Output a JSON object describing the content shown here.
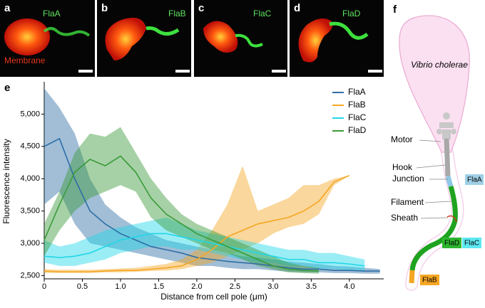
{
  "panels": [
    {
      "letter": "a",
      "label": "FlaA"
    },
    {
      "letter": "b",
      "label": "FlaB"
    },
    {
      "letter": "c",
      "label": "FlaC"
    },
    {
      "letter": "d",
      "label": "FlaD"
    }
  ],
  "membrane_label": "Membrane",
  "chart_data": {
    "type": "line",
    "panel_letter": "e",
    "xlabel": "Distance from cell pole (μm)",
    "ylabel": "Fluorescence intensity",
    "x": [
      0,
      0.2,
      0.4,
      0.6,
      0.8,
      1.0,
      1.2,
      1.4,
      1.6,
      1.8,
      2.0,
      2.2,
      2.4,
      2.6,
      2.8,
      3.0,
      3.2,
      3.4,
      3.6,
      3.8,
      4.0,
      4.2,
      4.4
    ],
    "xlim": [
      0,
      4.45
    ],
    "ylim": [
      2450,
      5500
    ],
    "xticks": [
      {
        "value": 0,
        "label": "0"
      },
      {
        "value": 0.5,
        "label": "0.5"
      },
      {
        "value": 1,
        "label": "1.0"
      },
      {
        "value": 1.5,
        "label": "1.5"
      },
      {
        "value": 2,
        "label": "2.0"
      },
      {
        "value": 2.5,
        "label": "2.5"
      },
      {
        "value": 3,
        "label": "3.0"
      },
      {
        "value": 3.5,
        "label": "3.5"
      },
      {
        "value": 4,
        "label": "4.0"
      }
    ],
    "yticks": [
      {
        "value": 2500,
        "label": "2,500"
      },
      {
        "value": 3000,
        "label": "3,000"
      },
      {
        "value": 3500,
        "label": "3,500"
      },
      {
        "value": 4000,
        "label": "4,000"
      },
      {
        "value": 4500,
        "label": "4,500"
      },
      {
        "value": 5000,
        "label": "5,000"
      }
    ],
    "series": [
      {
        "name": "FlaA",
        "color": "#2f6ea5",
        "values": [
          4500,
          4620,
          4000,
          3500,
          3300,
          3150,
          3050,
          2950,
          2900,
          2850,
          2780,
          2750,
          2720,
          2700,
          2680,
          2650,
          2620,
          2600,
          2600,
          2580,
          2580,
          2570,
          2570
        ],
        "upper": [
          5400,
          5100,
          4700,
          4000,
          3600,
          3400,
          3250,
          3150,
          3050,
          3000,
          2950,
          2900,
          2850,
          2800,
          2780,
          2750,
          2720,
          2700,
          2680,
          2650,
          2640,
          2620,
          2600
        ],
        "lower": [
          3600,
          3800,
          3300,
          3000,
          2950,
          2900,
          2850,
          2800,
          2750,
          2700,
          2650,
          2650,
          2620,
          2600,
          2600,
          2580,
          2560,
          2550,
          2550,
          2540,
          2540,
          2530,
          2530
        ]
      },
      {
        "name": "FlaB",
        "color": "#f5a623",
        "values": [
          2570,
          2560,
          2560,
          2560,
          2570,
          2580,
          2580,
          2600,
          2620,
          2650,
          2750,
          2900,
          3100,
          3200,
          3300,
          3350,
          3400,
          3500,
          3650,
          3950,
          4050,
          null,
          null
        ],
        "upper": [
          2600,
          2590,
          2590,
          2590,
          2600,
          2610,
          2620,
          2650,
          2680,
          2750,
          2900,
          3200,
          3600,
          4200,
          3500,
          3600,
          3700,
          3900,
          3900,
          4000,
          4050,
          null,
          null
        ],
        "lower": [
          2540,
          2540,
          2540,
          2540,
          2550,
          2550,
          2560,
          2570,
          2580,
          2600,
          2650,
          2700,
          2800,
          2900,
          3000,
          3150,
          3250,
          3300,
          3450,
          3900,
          4050,
          null,
          null
        ]
      },
      {
        "name": "FlaC",
        "color": "#22d6e8",
        "values": [
          2800,
          2780,
          2800,
          2850,
          2950,
          3050,
          3100,
          3150,
          3150,
          3100,
          3050,
          3000,
          2950,
          2900,
          2850,
          2800,
          2750,
          2750,
          2700,
          2700,
          2680,
          2650,
          null
        ],
        "upper": [
          3050,
          2950,
          3000,
          3100,
          3200,
          3250,
          3300,
          3350,
          3400,
          3300,
          3200,
          3150,
          3100,
          3050,
          3000,
          2950,
          2900,
          2900,
          2850,
          2850,
          2800,
          2750,
          null
        ],
        "lower": [
          2700,
          2650,
          2650,
          2700,
          2750,
          2850,
          2900,
          2950,
          2950,
          2900,
          2900,
          2850,
          2800,
          2750,
          2700,
          2700,
          2650,
          2650,
          2600,
          2600,
          2580,
          2560,
          null
        ]
      },
      {
        "name": "FlaD",
        "color": "#3a9a3a",
        "values": [
          3050,
          3600,
          4100,
          4300,
          4200,
          4350,
          4100,
          3700,
          3450,
          3300,
          3150,
          3050,
          2950,
          2850,
          2750,
          2650,
          2600,
          2580,
          2570,
          null,
          null,
          null,
          null
        ],
        "upper": [
          3300,
          3800,
          4400,
          4700,
          4650,
          4800,
          4400,
          4000,
          3700,
          3450,
          3300,
          3200,
          3100,
          3000,
          2900,
          2800,
          2700,
          2650,
          2620,
          null,
          null,
          null,
          null
        ],
        "lower": [
          2800,
          3200,
          3500,
          3700,
          3800,
          3900,
          3800,
          3400,
          3200,
          3100,
          3000,
          2900,
          2850,
          2750,
          2650,
          2600,
          2550,
          2540,
          2530,
          null,
          null,
          null,
          null
        ]
      }
    ],
    "legend": "upper right"
  },
  "diagram": {
    "letter": "f",
    "species": "Vibrio cholerae",
    "labels": {
      "motor": "Motor",
      "hook": "Hook",
      "junction": "Junction",
      "filament": "Filament",
      "sheath": "Sheath"
    },
    "proteins": {
      "flaA": "FlaA",
      "flaD": "FlaD",
      "flaC": "FlaC",
      "flaB": "FlaB"
    }
  }
}
